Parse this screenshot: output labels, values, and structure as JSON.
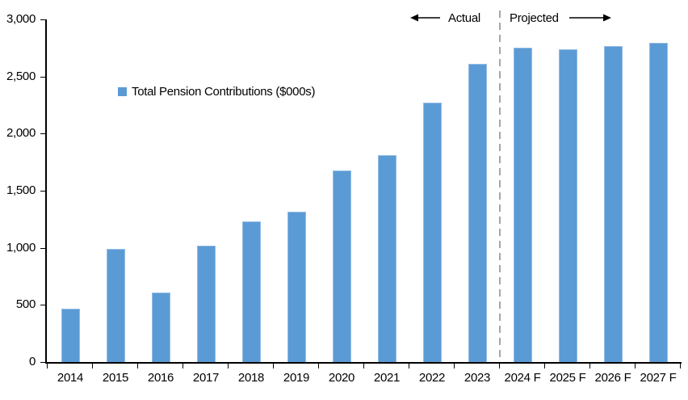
{
  "chart_data": {
    "type": "bar",
    "title": "",
    "legend": "Total Pension Contributions ($000s)",
    "categories": [
      "2014",
      "2015",
      "2016",
      "2017",
      "2018",
      "2019",
      "2020",
      "2021",
      "2022",
      "2023",
      "2024 F",
      "2025 F",
      "2026 F",
      "2027 F"
    ],
    "values": [
      470,
      990,
      610,
      1020,
      1230,
      1315,
      1680,
      1810,
      2270,
      2610,
      2750,
      2740,
      2765,
      2795
    ],
    "xlabel": "",
    "ylabel": "",
    "ylim": [
      0,
      3000
    ],
    "y_ticks": [
      {
        "value": 0,
        "label": "0"
      },
      {
        "value": 500,
        "label": "500"
      },
      {
        "value": 1000,
        "label": "1,000"
      },
      {
        "value": 1500,
        "label": "1,500"
      },
      {
        "value": 2000,
        "label": "2,000"
      },
      {
        "value": 2500,
        "label": "2,500"
      },
      {
        "value": 3000,
        "label": "3,000"
      }
    ],
    "grid": false,
    "legend_position": "inside-upper-left",
    "annotations": {
      "actual_label": "Actual",
      "projected_label": "Projected",
      "divider_between": [
        "2023",
        "2024 F"
      ]
    },
    "colors": {
      "bar": "#5B9BD5",
      "bar_edge": "#93BCE4",
      "divider": "#A6A6A6",
      "axis": "#000000",
      "text": "#000000"
    }
  }
}
